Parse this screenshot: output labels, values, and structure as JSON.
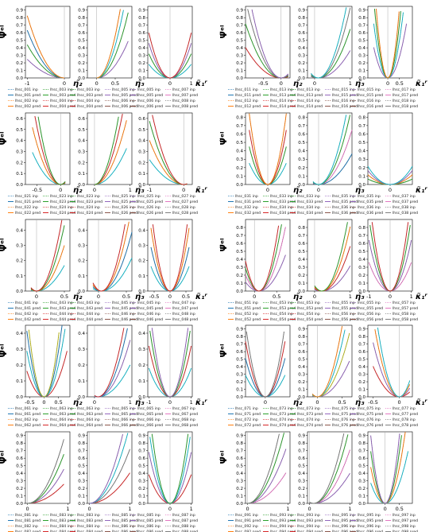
{
  "figure": {
    "ylabel": "Ψ̃ᵉˡ",
    "xlabels": [
      "η̃₂",
      "η̃₃",
      "κ̃₁ʳ"
    ]
  },
  "chart_data": {
    "type": "line",
    "grid_layout": {
      "cols": 2,
      "rows": 5,
      "panels_per_block": 3
    },
    "palette": [
      "#1f77b4",
      "#ff7f0e",
      "#2ca02c",
      "#d62728",
      "#9467bd",
      "#8c564b",
      "#e377c2",
      "#7f7f7f",
      "#bcbd22",
      "#17becf"
    ],
    "blocks": [
      {
        "id": "A1",
        "start": 1,
        "ymax": 0.95,
        "yticks": [
          0.0,
          0.1,
          0.2,
          0.3,
          0.4,
          0.5,
          0.6,
          0.7,
          0.8,
          0.9
        ],
        "xlabels": [
          "η̃₂",
          "η̃₃",
          "κ̃₁ʳ"
        ],
        "panels": [
          {
            "xlim": [
              -1.05,
              0.15
            ],
            "xticks": [
              -1,
              0
            ]
          },
          {
            "xlim": [
              -0.25,
              0.95
            ],
            "xticks": [
              0.0,
              0.5
            ]
          },
          {
            "xlim": [
              -1.05,
              1.05
            ],
            "xticks": [
              0,
              1
            ]
          }
        ]
      },
      {
        "id": "B1",
        "start": 11,
        "ymax": 0.95,
        "yticks": [
          0.0,
          0.1,
          0.2,
          0.3,
          0.4,
          0.5,
          0.6,
          0.7,
          0.8,
          0.9
        ],
        "xlabels": [
          "η̃₂",
          "η̃₃",
          "κ̃₁ʳ"
        ],
        "panels": [
          {
            "xlim": [
              -1.0,
              0.25
            ],
            "xticks": [
              -0.5,
              0.0
            ]
          },
          {
            "xlim": [
              -0.2,
              1.05
            ],
            "xticks": [
              0,
              1
            ]
          },
          {
            "xlim": [
              -0.85,
              1.05
            ],
            "xticks": [
              0.0,
              0.5
            ]
          }
        ]
      },
      {
        "id": "A2",
        "start": 21,
        "ymax": 0.65,
        "yticks": [
          0.0,
          0.1,
          0.2,
          0.3,
          0.4,
          0.5,
          0.6
        ],
        "xlabels": [
          "η̃₂",
          "η̃₃",
          "κ̃₁ʳ"
        ],
        "panels": [
          {
            "xlim": [
              -0.75,
              0.2
            ],
            "xticks": [
              -0.5,
              0.0
            ]
          },
          {
            "xlim": [
              -0.2,
              1.05
            ],
            "xticks": [
              0,
              1
            ]
          },
          {
            "xlim": [
              -1.05,
              0.25
            ],
            "xticks": [
              -1,
              0
            ]
          }
        ]
      },
      {
        "id": "B2",
        "start": 31,
        "ymax": 0.85,
        "yticks": [
          0.0,
          0.1,
          0.2,
          0.3,
          0.4,
          0.5,
          0.6,
          0.7,
          0.8
        ],
        "xlabels": [
          "η̃₂",
          "η̃₃",
          "κ̃₁ʳ"
        ],
        "panels": [
          {
            "xlim": [
              -0.3,
              0.3
            ],
            "xticks": [
              0.0
            ]
          },
          {
            "xlim": [
              -0.1,
              0.3
            ],
            "xticks": [
              0.0
            ]
          },
          {
            "xlim": [
              -0.3,
              0.3
            ],
            "xticks": [
              0
            ]
          }
        ]
      },
      {
        "id": "A3",
        "start": 41,
        "ymax": 0.47,
        "yticks": [
          0.0,
          0.1,
          0.2,
          0.3,
          0.4
        ],
        "xlabels": [
          "η̃₂",
          "η̃₃",
          "κ̃₁ʳ"
        ],
        "panels": [
          {
            "xlim": [
              -0.2,
              0.6
            ],
            "xticks": [
              0.0,
              0.5
            ]
          },
          {
            "xlim": [
              -0.2,
              0.6
            ],
            "xticks": [
              0.0,
              0.5
            ]
          },
          {
            "xlim": [
              -0.7,
              0.7
            ],
            "xticks": [
              -0.5,
              0.0,
              0.5
            ]
          }
        ]
      },
      {
        "id": "B3",
        "start": 51,
        "ymax": 0.9,
        "yticks": [
          0.0,
          0.1,
          0.2,
          0.3,
          0.4,
          0.5,
          0.6,
          0.7,
          0.8
        ],
        "xlabels": [
          "η̃₂",
          "η̃₃",
          "κ̃₁ʳ"
        ],
        "panels": [
          {
            "xlim": [
              -0.2,
              0.8
            ],
            "xticks": [
              0.0,
              0.5
            ]
          },
          {
            "xlim": [
              -0.2,
              1.05
            ],
            "xticks": [
              0,
              1
            ]
          },
          {
            "xlim": [
              -1.05,
              1.05
            ],
            "xticks": [
              -1,
              0,
              1
            ]
          }
        ]
      },
      {
        "id": "A4",
        "start": 61,
        "ymax": 0.45,
        "yticks": [
          0.0,
          0.1,
          0.2,
          0.3,
          0.4
        ],
        "xlabels": [
          "η̃₂",
          "η̃₃",
          "κ̃₁ʳ"
        ],
        "panels": [
          {
            "xlim": [
              -0.65,
              0.9
            ],
            "xticks": [
              -0.5,
              0.0,
              0.5
            ]
          },
          {
            "xlim": [
              -0.2,
              1.05
            ],
            "xticks": [
              0,
              1
            ]
          },
          {
            "xlim": [
              -1.05,
              1.05
            ],
            "xticks": [
              -1,
              0,
              1
            ]
          }
        ]
      },
      {
        "id": "B4",
        "start": 71,
        "ymax": 0.95,
        "yticks": [
          0.0,
          0.1,
          0.2,
          0.3,
          0.4,
          0.5,
          0.6,
          0.7,
          0.8,
          0.9
        ],
        "xlabels": [
          "η̃₂",
          "η̃₃",
          "κ̃₁ʳ"
        ],
        "panels": [
          {
            "xlim": [
              -0.2,
              0.25
            ],
            "xticks": [
              0.0
            ]
          },
          {
            "xlim": [
              -0.2,
              0.7
            ],
            "xticks": [
              0.0,
              0.5
            ]
          },
          {
            "xlim": [
              -0.6,
              0.25
            ],
            "xticks": [
              -0.5,
              0.0
            ]
          }
        ]
      },
      {
        "id": "A5",
        "start": 81,
        "ymax": 0.95,
        "yticks": [
          0.0,
          0.1,
          0.2,
          0.3,
          0.4,
          0.5,
          0.6,
          0.7,
          0.8,
          0.9
        ],
        "xlabels": [
          "",
          "",
          ""
        ],
        "panels": [
          {
            "xlim": [
              -0.05,
              1.05
            ],
            "xticks": [
              0,
              1
            ]
          },
          {
            "xlim": [
              -0.05,
              1.05
            ],
            "xticks": [
              0,
              1
            ]
          },
          {
            "xlim": [
              -1.05,
              1.05
            ],
            "xticks": [
              0,
              1
            ]
          }
        ]
      },
      {
        "id": "B5",
        "start": 91,
        "ymax": 0.95,
        "yticks": [
          0.0,
          0.1,
          0.2,
          0.3,
          0.4,
          0.5,
          0.6,
          0.7,
          0.8,
          0.9
        ],
        "xlabels": [
          "",
          "",
          ""
        ],
        "panels": [
          {
            "xlim": [
              -0.05,
              1.05
            ],
            "xticks": [
              0,
              1
            ]
          },
          {
            "xlim": [
              -0.05,
              1.05
            ],
            "xticks": [
              0,
              1
            ]
          },
          {
            "xlim": [
              -0.6,
              0.95
            ],
            "xticks": [
              0.0,
              0.5
            ]
          }
        ]
      }
    ],
    "curves": [
      {
        "panel": "A1-0",
        "vertex": [
          0.0,
          0.0
        ],
        "k": 0.55,
        "colors": [
          "#9467bd",
          "#2ca02c",
          "#1f77b4",
          "#ff7f0e"
        ],
        "xmin": -1.0,
        "xmax": 0.0
      },
      {
        "panel": "A1-1",
        "vertex": [
          0.0,
          0.0
        ],
        "k": 1.5,
        "colors": [
          "#9467bd",
          "#2ca02c",
          "#17becf",
          "#ff7f0e"
        ],
        "xmin": 0.0,
        "xmax": 0.85
      },
      {
        "panel": "A1-2",
        "vertex": [
          0.0,
          0.0
        ],
        "k": 0.4,
        "colors": [
          "#17becf",
          "#2ca02c",
          "#9467bd",
          "#d62728"
        ],
        "xmin": -1.0,
        "xmax": 1.0
      },
      {
        "panel": "B1-0",
        "vertex": [
          0.0,
          0.0
        ],
        "k": 0.9,
        "colors": [
          "#d62728",
          "#2ca02c",
          "#7f7f7f",
          "#9467bd"
        ],
        "xmin": -1.0,
        "xmax": 0.2
      },
      {
        "panel": "B1-1",
        "vertex": [
          0.1,
          0.0
        ],
        "k": 1.0,
        "colors": [
          "#9467bd",
          "#2ca02c",
          "#7f7f7f",
          "#17becf"
        ],
        "xmin": -0.1,
        "xmax": 1.0
      },
      {
        "panel": "B1-2",
        "vertex": [
          0.0,
          0.0
        ],
        "k": 2.5,
        "colors": [
          "#9467bd",
          "#17becf",
          "#2ca02c",
          "#ff7f0e"
        ],
        "xmin": -0.6,
        "xmax": 0.8
      },
      {
        "panel": "A2-0",
        "vertex": [
          0.0,
          0.0
        ],
        "k": 1.8,
        "colors": [
          "#17becf",
          "#ff7f0e",
          "#d62728",
          "#2ca02c"
        ],
        "xmin": -0.6,
        "xmax": 0.1
      },
      {
        "panel": "A2-1",
        "vertex": [
          0.0,
          0.0
        ],
        "k": 0.9,
        "colors": [
          "#17becf",
          "#ff7f0e",
          "#d62728",
          "#2ca02c"
        ],
        "xmin": 0.0,
        "xmax": 0.9
      },
      {
        "panel": "A2-2",
        "vertex": [
          0.0,
          0.0
        ],
        "k": 0.5,
        "colors": [
          "#17becf",
          "#ff7f0e",
          "#2ca02c",
          "#d62728"
        ],
        "xmin": -1.0,
        "xmax": 0.1
      },
      {
        "panel": "B2-0",
        "vertex": [
          0.0,
          0.0
        ],
        "k": 9.0,
        "colors": [
          "#17becf",
          "#2ca02c",
          "#d62728",
          "#ff7f0e"
        ],
        "xmin": -0.25,
        "xmax": 0.25
      },
      {
        "panel": "B2-1",
        "vertex": [
          0.0,
          0.0
        ],
        "k": 9.0,
        "colors": [
          "#1f77b4",
          "#e377c2",
          "#2ca02c",
          "#17becf"
        ],
        "xmin": -0.05,
        "xmax": 0.3
      },
      {
        "panel": "B2-2",
        "vertex": [
          0.0,
          0.0
        ],
        "k": 1.6,
        "colors": [
          "#2ca02c",
          "#ff7f0e",
          "#9467bd",
          "#17becf"
        ],
        "xmin": -0.3,
        "xmax": 0.3
      },
      {
        "panel": "A3-0",
        "vertex": [
          0.0,
          0.0
        ],
        "k": 1.5,
        "colors": [
          "#17becf",
          "#ff7f0e",
          "#2ca02c",
          "#d62728"
        ],
        "xmin": -0.1,
        "xmax": 0.5
      },
      {
        "panel": "A3-1",
        "vertex": [
          0.05,
          0.0
        ],
        "k": 1.6,
        "colors": [
          "#17becf",
          "#1f77b4",
          "#ff7f0e",
          "#d62728"
        ],
        "xmin": -0.1,
        "xmax": 0.6
      },
      {
        "panel": "A3-2",
        "vertex": [
          0.0,
          0.0
        ],
        "k": 1.0,
        "colors": [
          "#17becf",
          "#1f77b4",
          "#ff7f0e",
          "#d62728"
        ],
        "xmin": -0.6,
        "xmax": 0.6
      },
      {
        "panel": "B3-0",
        "vertex": [
          0.1,
          0.0
        ],
        "k": 2.8,
        "colors": [
          "#9467bd",
          "#e377c2",
          "#2ca02c",
          "#d62728"
        ],
        "xmin": -0.2,
        "xmax": 0.7
      },
      {
        "panel": "B3-1",
        "vertex": [
          0.2,
          0.0
        ],
        "k": 1.1,
        "colors": [
          "#9467bd",
          "#d62728",
          "#ff7f0e",
          "#2ca02c"
        ],
        "xmin": 0.0,
        "xmax": 1.0
      },
      {
        "panel": "B3-2",
        "vertex": [
          0.0,
          0.0
        ],
        "k": 0.8,
        "colors": [
          "#e377c2",
          "#9467bd",
          "#2ca02c",
          "#d62728"
        ],
        "xmin": -1.0,
        "xmax": 1.0
      },
      {
        "panel": "A4-0",
        "vertex": [
          0.0,
          0.0
        ],
        "k": 1.0,
        "colors": [
          "#d62728",
          "#17becf",
          "#1f77b4",
          "#bcbd22"
        ],
        "xmin": -0.6,
        "xmax": 0.8
      },
      {
        "panel": "A4-1",
        "vertex": [
          0.1,
          0.0
        ],
        "k": 0.55,
        "colors": [
          "#17becf",
          "#9467bd",
          "#1f77b4",
          "#d62728"
        ],
        "xmin": 0.0,
        "xmax": 1.0
      },
      {
        "panel": "A4-2",
        "vertex": [
          0.0,
          0.0
        ],
        "k": 0.4,
        "colors": [
          "#17becf",
          "#d62728",
          "#2ca02c",
          "#9467bd"
        ],
        "xmin": -1.0,
        "xmax": 1.0
      },
      {
        "panel": "B4-0",
        "vertex": [
          0.0,
          0.0
        ],
        "k": 16.0,
        "colors": [
          "#17becf",
          "#1f77b4",
          "#d62728",
          "#7f7f7f"
        ],
        "xmin": -0.2,
        "xmax": 0.2
      },
      {
        "panel": "B4-1",
        "vertex": [
          0.0,
          0.0
        ],
        "k": 2.5,
        "colors": [
          "#9467bd",
          "#bcbd22",
          "#17becf",
          "#ff7f0e"
        ],
        "xmin": -0.1,
        "xmax": 0.65
      },
      {
        "panel": "B4-2",
        "vertex": [
          0.0,
          0.0
        ],
        "k": 3.6,
        "colors": [
          "#d62728",
          "#9467bd",
          "#ff7f0e",
          "#17becf"
        ],
        "xmin": -0.5,
        "xmax": 0.2
      },
      {
        "panel": "A5-0",
        "vertex": [
          0.0,
          0.0
        ],
        "k": 0.7,
        "colors": [
          "#d62728",
          "#9467bd",
          "#2ca02c",
          "#7f7f7f"
        ],
        "xmin": 0.0,
        "xmax": 0.9
      },
      {
        "panel": "A5-1",
        "vertex": [
          0.0,
          0.0
        ],
        "k": 0.9,
        "colors": [
          "#d62728",
          "#7f7f7f",
          "#17becf",
          "#9467bd"
        ],
        "xmin": 0.0,
        "xmax": 1.0
      },
      {
        "panel": "A5-2",
        "vertex": [
          0.0,
          0.0
        ],
        "k": 0.85,
        "colors": [
          "#d62728",
          "#9467bd",
          "#17becf",
          "#2ca02c"
        ],
        "xmin": -1.0,
        "xmax": 1.0
      },
      {
        "panel": "B5-0",
        "vertex": [
          0.0,
          0.0
        ],
        "k": 1.0,
        "colors": [
          "#e377c2",
          "#9467bd",
          "#2ca02c",
          "#7f7f7f"
        ],
        "xmin": 0.0,
        "xmax": 0.95
      },
      {
        "panel": "B5-1",
        "vertex": [
          0.1,
          0.0
        ],
        "k": 1.1,
        "colors": [
          "#9467bd",
          "#e377c2",
          "#2ca02c",
          "#7f7f7f"
        ],
        "xmin": 0.0,
        "xmax": 1.0
      },
      {
        "panel": "B5-2",
        "vertex": [
          0.0,
          0.0
        ],
        "k": 2.4,
        "colors": [
          "#17becf",
          "#ff7f0e",
          "#2ca02c",
          "#9467bd"
        ],
        "xmin": -0.5,
        "xmax": 0.8
      }
    ],
    "legend": {
      "suffix_inp": "inp",
      "suffix_pred": "pred",
      "prefix": "lhsc_"
    }
  }
}
